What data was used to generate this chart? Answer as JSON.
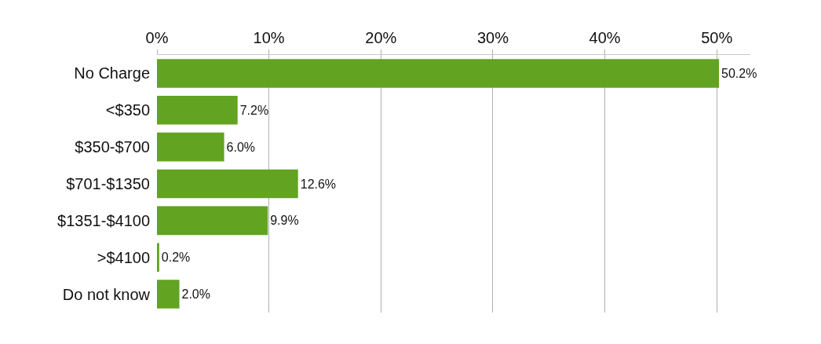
{
  "chart_data": {
    "type": "bar",
    "orientation": "horizontal",
    "categories": [
      "No Charge",
      "<$350",
      "$350-$700",
      "$701-$1350",
      "$1351-$4100",
      ">$4100",
      "Do not know"
    ],
    "values": [
      50.2,
      7.2,
      6.0,
      12.6,
      9.9,
      0.2,
      2.0
    ],
    "value_labels": [
      "50.2%",
      "7.2%",
      "6.0%",
      "12.6%",
      "9.9%",
      "0.2%",
      "2.0%"
    ],
    "color": "#62a321",
    "xlim": [
      0,
      53
    ],
    "xticks": [
      {
        "value": 0,
        "label": "0%"
      },
      {
        "value": 10,
        "label": "10%"
      },
      {
        "value": 20,
        "label": "20%"
      },
      {
        "value": 30,
        "label": "30%"
      },
      {
        "value": 40,
        "label": "40%"
      },
      {
        "value": 50,
        "label": "50%"
      }
    ],
    "grid": "x"
  }
}
